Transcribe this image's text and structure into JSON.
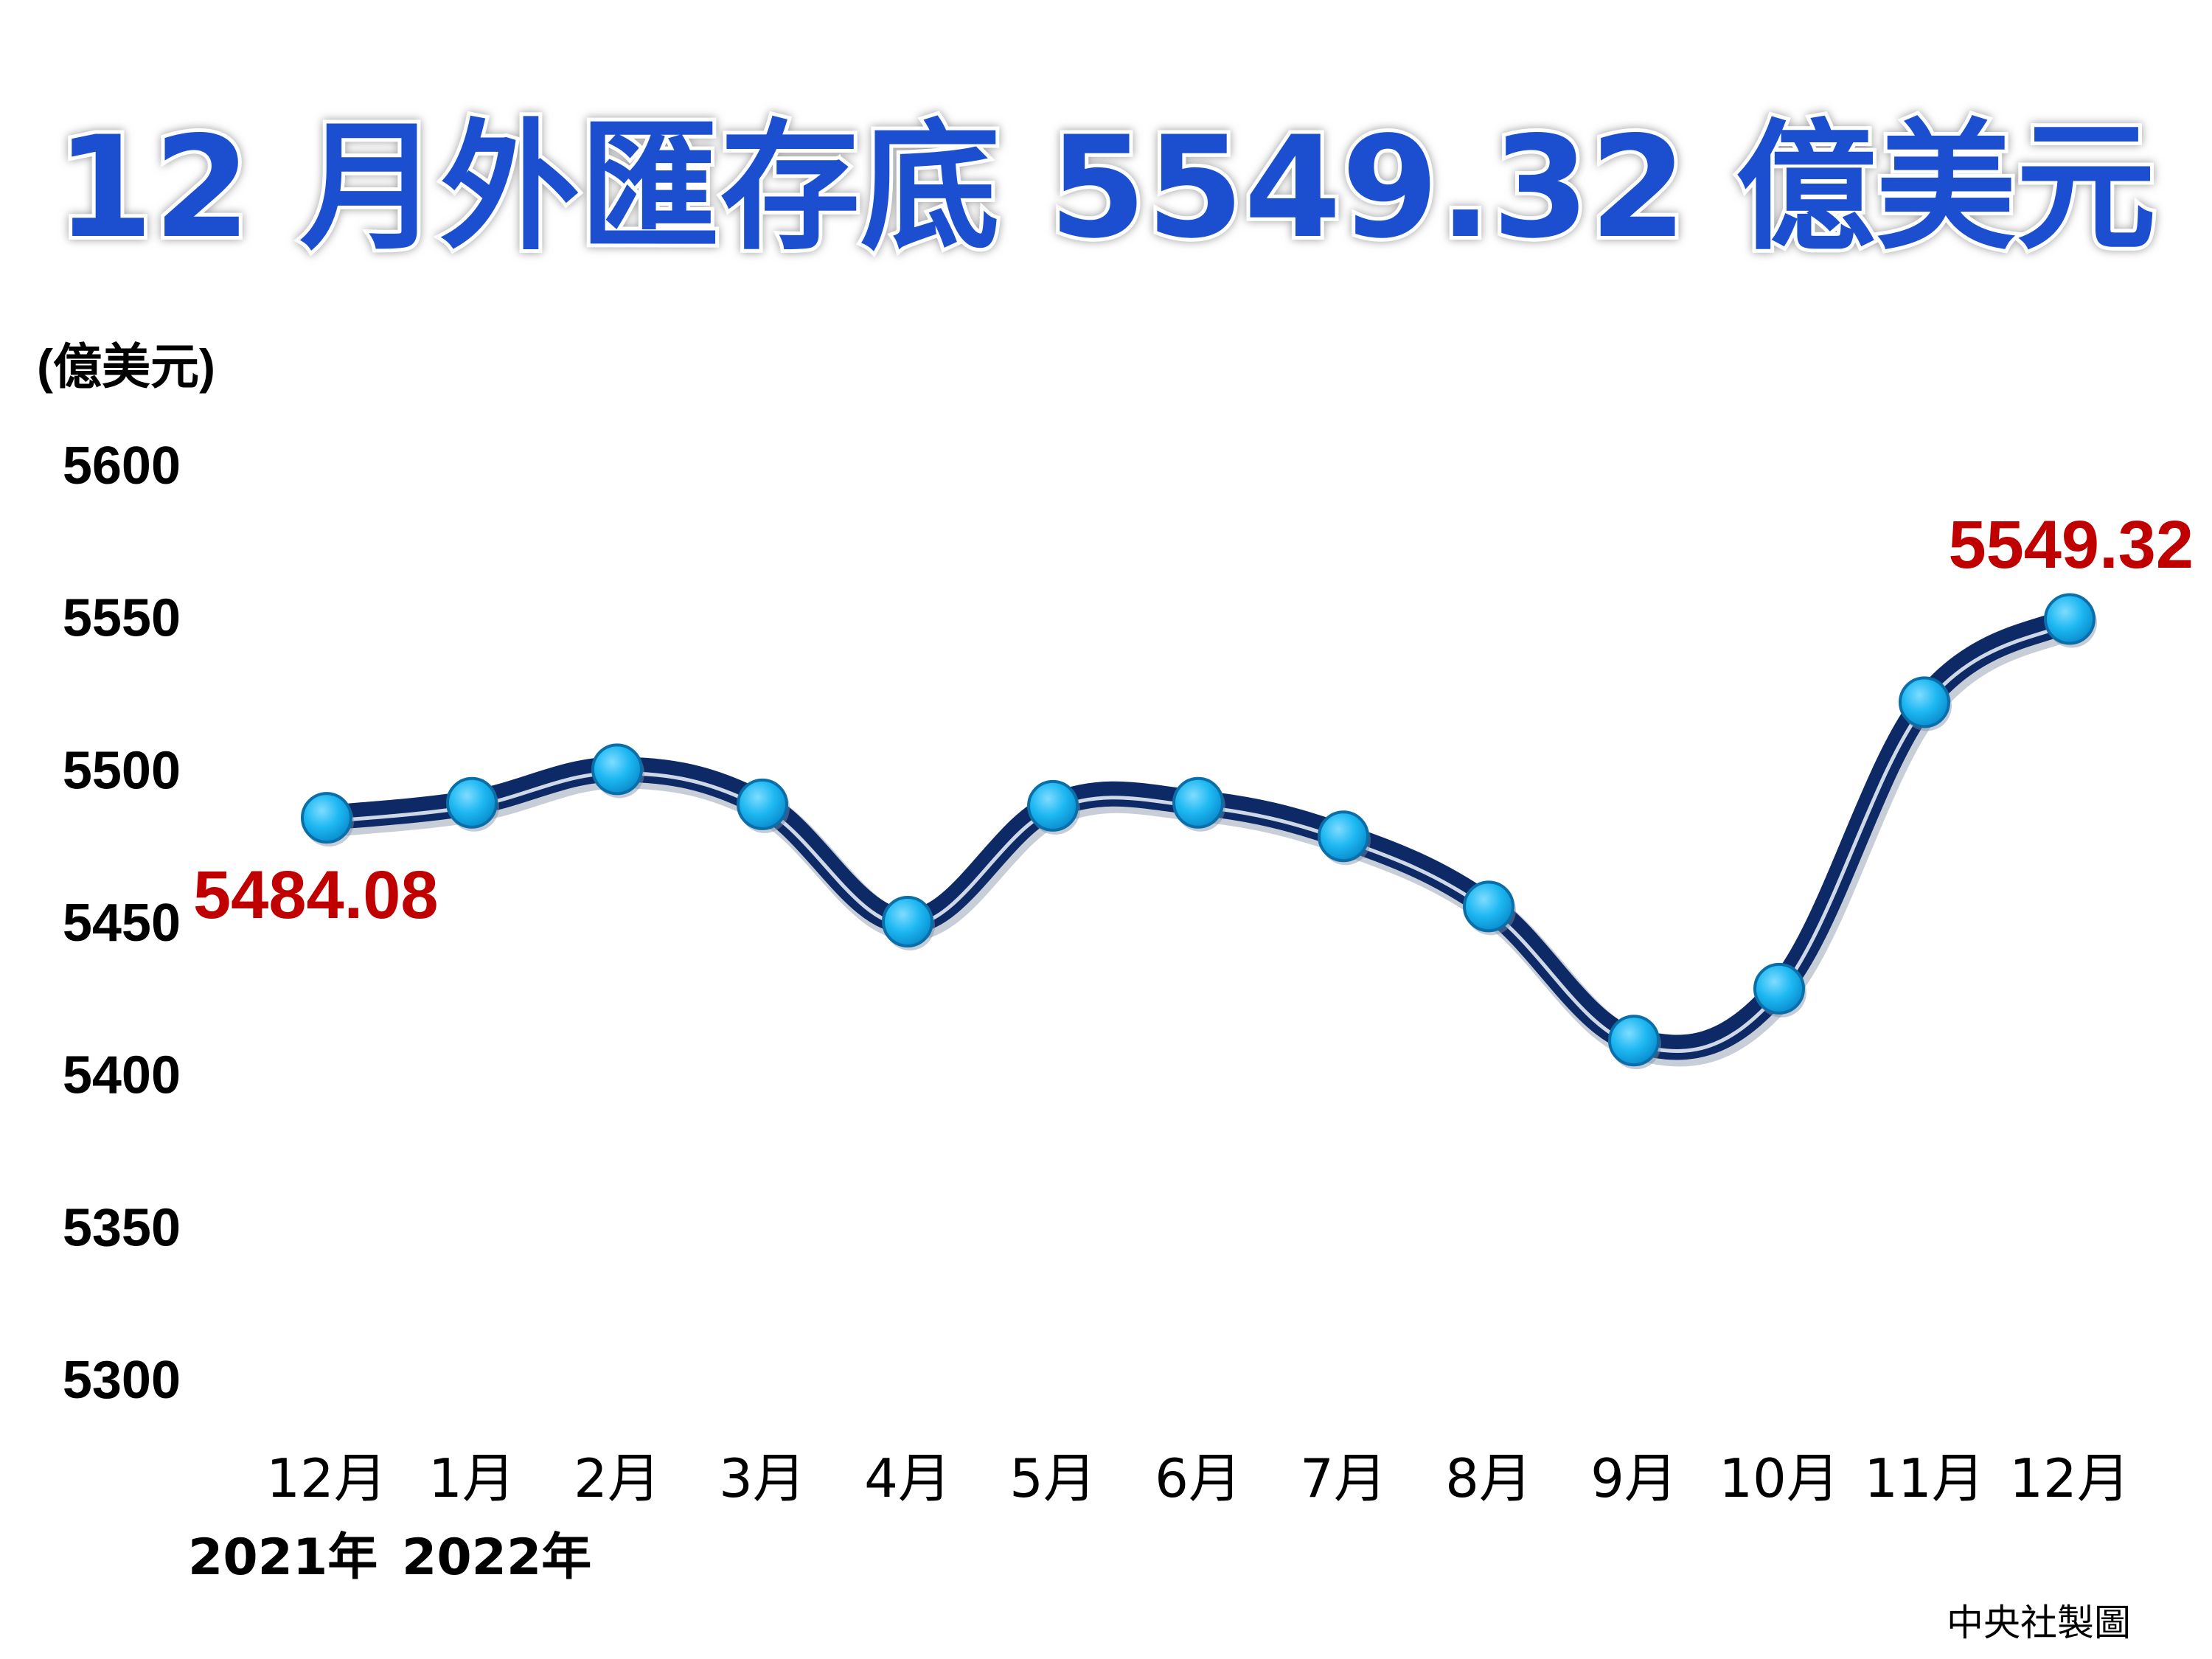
{
  "chart_data": {
    "type": "line",
    "title": "12 月外匯存底 5549.32 億美元",
    "ylabel": "(億美元)",
    "xlabel": "",
    "ylim": [
      5300,
      5600
    ],
    "y_ticks": [
      "5600",
      "5550",
      "5500",
      "5450",
      "5400",
      "5350",
      "5300"
    ],
    "categories": [
      "12月",
      "1月",
      "2月",
      "3月",
      "4月",
      "5月",
      "6月",
      "7月",
      "8月",
      "9月",
      "10月",
      "11月",
      "12月"
    ],
    "year_labels": [
      "2021年",
      "2022年"
    ],
    "values": [
      5484.08,
      5489.0,
      5500.0,
      5488.5,
      5450.0,
      5488.0,
      5489.0,
      5478.0,
      5455.0,
      5411.0,
      5428.0,
      5522.0,
      5549.32
    ],
    "data_labels": {
      "first": "5484.08",
      "last": "5549.32"
    },
    "grid": false,
    "legend": "none",
    "colors": {
      "title": "#1a4fd0",
      "line": "#0d2a66",
      "line_highlight": "#cfd8e6",
      "marker": "#1db8f2",
      "marker_edge": "#0a6fa8",
      "data_label": "#c00000",
      "axis_text": "#000000"
    }
  },
  "credit": "中央社製圖"
}
